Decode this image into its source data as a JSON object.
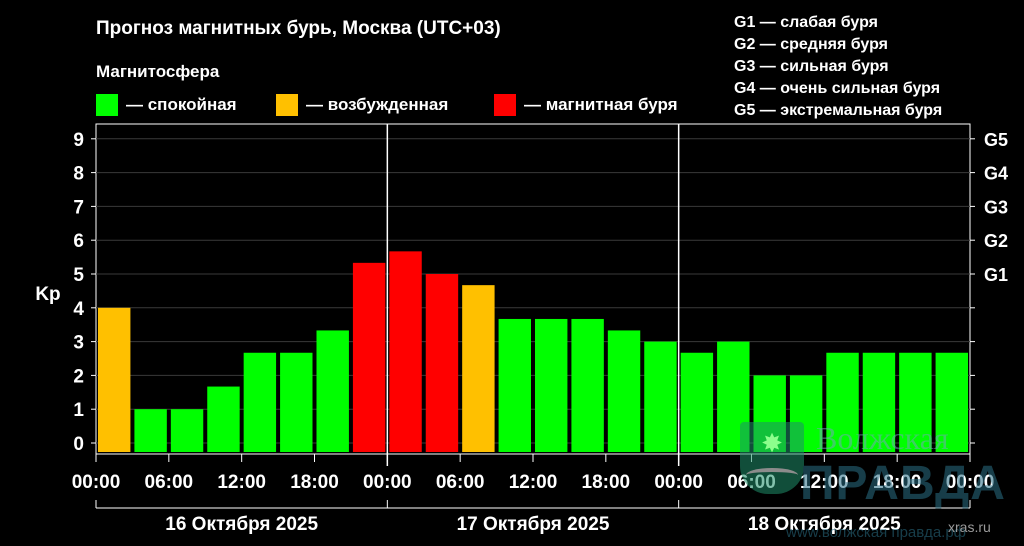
{
  "header": {
    "title": "Прогноз магнитных бурь, Москва (UTC+03)",
    "legend_title": "Магнитосфера"
  },
  "legend": [
    {
      "label": "— спокойная",
      "color": "#00ff00"
    },
    {
      "label": "— возбужденная",
      "color": "#ffc000"
    },
    {
      "label": "— магнитная буря",
      "color": "#ff0000"
    }
  ],
  "g_scale": [
    "G1 — слабая буря",
    "G2 — средняя буря",
    "G3 — сильная буря",
    "G4 — очень сильная буря",
    "G5 — экстремальная буря"
  ],
  "watermark": {
    "line1": "Волжская",
    "line2": "ПРАВДА",
    "url": "www.волжская правда.рф"
  },
  "credit": "xras.ru",
  "chart_data": {
    "type": "bar",
    "ylabel": "Kp",
    "ylim": [
      0,
      9
    ],
    "yticks": [
      "0",
      "1",
      "2",
      "3",
      "4",
      "5",
      "6",
      "7",
      "8",
      "9"
    ],
    "right_ticks": [
      {
        "label": "G1",
        "kp": 5
      },
      {
        "label": "G2",
        "kp": 6
      },
      {
        "label": "G3",
        "kp": 7
      },
      {
        "label": "G4",
        "kp": 8
      },
      {
        "label": "G5",
        "kp": 9
      }
    ],
    "time_labels": [
      "00:00",
      "06:00",
      "12:00",
      "18:00",
      "00:00",
      "06:00",
      "12:00",
      "18:00",
      "00:00",
      "06:00",
      "12:00",
      "18:00",
      "00:00"
    ],
    "days": [
      "16 Октября 2025",
      "17 Октября 2025",
      "18 Октября 2025"
    ],
    "values": [
      4.0,
      1.0,
      1.0,
      1.67,
      2.67,
      2.67,
      3.33,
      5.33,
      5.67,
      5.0,
      4.67,
      3.67,
      3.67,
      3.67,
      3.33,
      3.0,
      2.67,
      3.0,
      2.0,
      2.0,
      2.67,
      2.67,
      2.67,
      2.67
    ],
    "levels": [
      "excited",
      "quiet",
      "quiet",
      "quiet",
      "quiet",
      "quiet",
      "quiet",
      "storm",
      "storm",
      "storm",
      "excited",
      "quiet",
      "quiet",
      "quiet",
      "quiet",
      "quiet",
      "quiet",
      "quiet",
      "quiet",
      "quiet",
      "quiet",
      "quiet",
      "quiet",
      "quiet"
    ],
    "colors": {
      "quiet": "#00ff00",
      "excited": "#ffc000",
      "storm": "#ff0000"
    },
    "grid": "horizontal"
  }
}
